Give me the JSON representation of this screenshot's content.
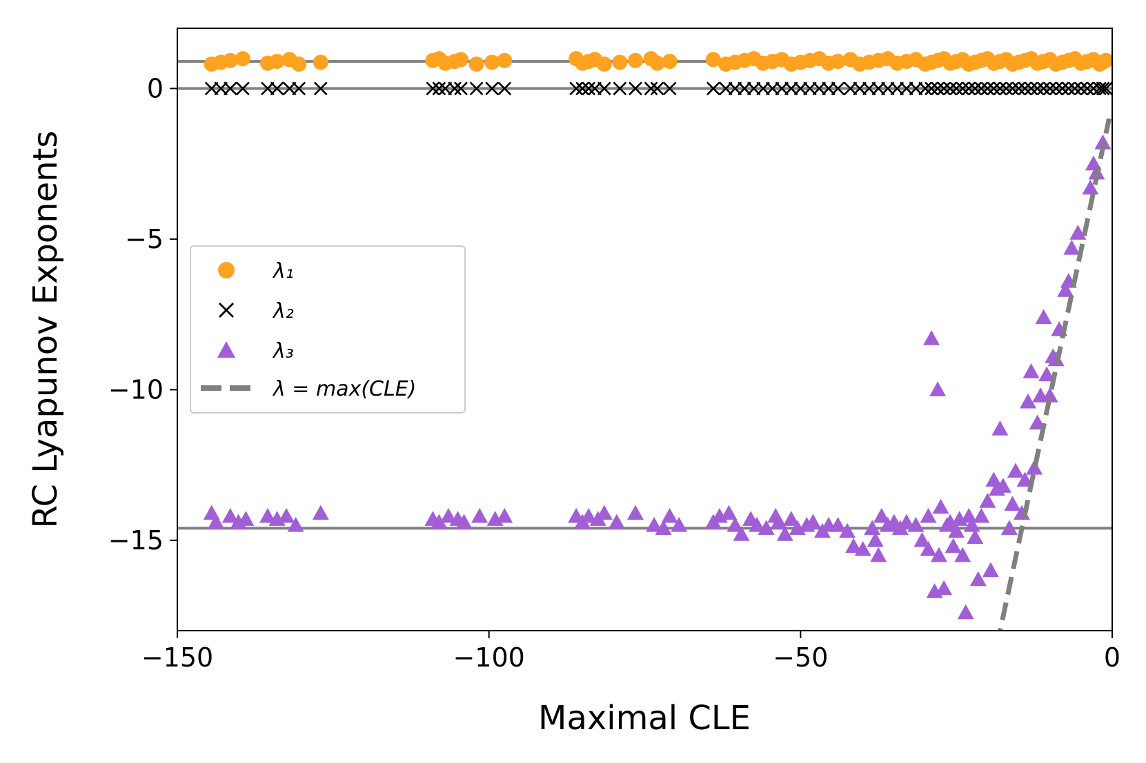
{
  "chart_data": {
    "type": "scatter",
    "title": "",
    "xlabel": "Maximal CLE",
    "ylabel": "RC Lyapunov Exponents",
    "xlim": [
      -150,
      0
    ],
    "ylim": [
      -18,
      2
    ],
    "xticks": [
      -150,
      -100,
      -50,
      0
    ],
    "xtick_labels": [
      "−150",
      "−100",
      "−50",
      "0"
    ],
    "yticks": [
      0,
      -5,
      -10,
      -15
    ],
    "ytick_labels": [
      "0",
      "−5",
      "−10",
      "−15"
    ],
    "colors": {
      "lambda1": "#ffa220",
      "lambda2": "#000000",
      "lambda3": "#a25ed6",
      "reference": "#808080"
    },
    "reference_lines": [
      {
        "name": "lambda1-mean",
        "y": 0.9
      },
      {
        "name": "lambda2-mean",
        "y": 0.0
      },
      {
        "name": "lambda3-mean",
        "y": -14.6
      }
    ],
    "dashed_line": {
      "name": "λ = max(CLE)",
      "x": [
        -18.5,
        -0.5
      ],
      "y": [
        -18.5,
        -1.0
      ]
    },
    "legend": [
      {
        "key": "lambda1",
        "marker": "circle",
        "label": "λ₁"
      },
      {
        "key": "lambda2",
        "marker": "x",
        "label": "λ₂"
      },
      {
        "key": "lambda3",
        "marker": "triangle",
        "label": "λ₃"
      },
      {
        "key": "reference",
        "marker": "dash",
        "label": "λ = max(CLE)"
      }
    ],
    "x_points": [
      -144.5,
      -143,
      -141.5,
      -139.5,
      -135.5,
      -134,
      -132,
      -130.5,
      -127,
      -109,
      -108,
      -107,
      -105.5,
      -104.5,
      -102,
      -99.5,
      -97.5,
      -86,
      -85,
      -84,
      -83,
      -81.5,
      -79,
      -76.5,
      -74,
      -73,
      -71,
      -64,
      -62,
      -60.5,
      -59,
      -57.5,
      -56,
      -54.5,
      -53,
      -51.5,
      -50,
      -48.5,
      -47,
      -45.5,
      -44,
      -42,
      -40.5,
      -39,
      -37.5,
      -36,
      -34.5,
      -33,
      -31.5,
      -30,
      -29,
      -28,
      -27,
      -26,
      -25,
      -24,
      -23,
      -22,
      -21,
      -20,
      -19,
      -18,
      -17,
      -16,
      -15,
      -14,
      -13,
      -12,
      -11,
      -10,
      -9,
      -8,
      -7,
      -6,
      -5,
      -4,
      -3,
      -2,
      -1.5,
      -1
    ],
    "series": [
      {
        "name": "lambda1",
        "y_mean": 0.9
      },
      {
        "name": "lambda2",
        "y_mean": 0.0
      },
      {
        "name": "lambda3",
        "points": [
          [
            -144.5,
            -14.1
          ],
          [
            -143.8,
            -14.4
          ],
          [
            -141.5,
            -14.2
          ],
          [
            -140.2,
            -14.4
          ],
          [
            -139,
            -14.3
          ],
          [
            -135.5,
            -14.2
          ],
          [
            -134,
            -14.3
          ],
          [
            -132.5,
            -14.2
          ],
          [
            -131,
            -14.5
          ],
          [
            -127,
            -14.1
          ],
          [
            -109,
            -14.3
          ],
          [
            -108,
            -14.4
          ],
          [
            -106.5,
            -14.2
          ],
          [
            -105,
            -14.3
          ],
          [
            -104,
            -14.4
          ],
          [
            -101.5,
            -14.2
          ],
          [
            -99,
            -14.3
          ],
          [
            -97.5,
            -14.2
          ],
          [
            -86,
            -14.2
          ],
          [
            -85,
            -14.4
          ],
          [
            -84,
            -14.2
          ],
          [
            -82.5,
            -14.3
          ],
          [
            -81.5,
            -14.1
          ],
          [
            -79.5,
            -14.4
          ],
          [
            -76.5,
            -14.1
          ],
          [
            -73.5,
            -14.5
          ],
          [
            -72,
            -14.6
          ],
          [
            -71,
            -14.2
          ],
          [
            -69.5,
            -14.5
          ],
          [
            -64,
            -14.4
          ],
          [
            -63,
            -14.2
          ],
          [
            -61.5,
            -14.1
          ],
          [
            -60.5,
            -14.5
          ],
          [
            -59.5,
            -14.8
          ],
          [
            -58,
            -14.3
          ],
          [
            -57,
            -14.5
          ],
          [
            -55.5,
            -14.6
          ],
          [
            -54,
            -14.2
          ],
          [
            -53.5,
            -14.4
          ],
          [
            -52.5,
            -14.8
          ],
          [
            -51.5,
            -14.3
          ],
          [
            -50.5,
            -14.6
          ],
          [
            -49,
            -14.5
          ],
          [
            -48,
            -14.4
          ],
          [
            -46.5,
            -14.7
          ],
          [
            -45.5,
            -14.5
          ],
          [
            -44,
            -14.5
          ],
          [
            -42.5,
            -14.7
          ],
          [
            -41.5,
            -15.2
          ],
          [
            -40,
            -15.3
          ],
          [
            -38.5,
            -14.6
          ],
          [
            -38,
            -15.0
          ],
          [
            -37.5,
            -15.5
          ],
          [
            -37,
            -14.2
          ],
          [
            -36,
            -14.5
          ],
          [
            -35,
            -14.4
          ],
          [
            -34,
            -14.6
          ],
          [
            -33,
            -14.4
          ],
          [
            -31.5,
            -14.5
          ],
          [
            -30.5,
            -15.0
          ],
          [
            -29.5,
            -14.2
          ],
          [
            -29,
            -8.3
          ],
          [
            -29.5,
            -15.3
          ],
          [
            -28.5,
            -16.7
          ],
          [
            -28,
            -10.0
          ],
          [
            -27.8,
            -15.5
          ],
          [
            -27.5,
            -13.9
          ],
          [
            -27,
            -16.6
          ],
          [
            -26.5,
            -14.5
          ],
          [
            -26,
            -14.4
          ],
          [
            -25.5,
            -15.2
          ],
          [
            -25,
            -14.7
          ],
          [
            -24.5,
            -14.3
          ],
          [
            -24,
            -15.5
          ],
          [
            -23.5,
            -17.4
          ],
          [
            -23,
            -14.2
          ],
          [
            -22.5,
            -14.5
          ],
          [
            -22,
            -14.9
          ],
          [
            -21.5,
            -16.3
          ],
          [
            -21,
            -14.2
          ],
          [
            -20,
            -13.7
          ],
          [
            -19.5,
            -16.0
          ],
          [
            -19,
            -13.0
          ],
          [
            -18.5,
            -13.3
          ],
          [
            -18,
            -11.3
          ],
          [
            -17.5,
            -13.2
          ],
          [
            -16.5,
            -14.6
          ],
          [
            -16,
            -13.8
          ],
          [
            -15.5,
            -12.7
          ],
          [
            -14.5,
            -14.1
          ],
          [
            -14,
            -13.0
          ],
          [
            -13.5,
            -10.4
          ],
          [
            -13,
            -9.4
          ],
          [
            -12.5,
            -12.6
          ],
          [
            -12,
            -11.1
          ],
          [
            -11.5,
            -10.2
          ],
          [
            -11,
            -7.6
          ],
          [
            -10.5,
            -9.5
          ],
          [
            -10,
            -10.2
          ],
          [
            -9.5,
            -8.9
          ],
          [
            -9,
            -9.0
          ],
          [
            -8.5,
            -8.0
          ],
          [
            -7.5,
            -6.7
          ],
          [
            -7,
            -6.4
          ],
          [
            -6.5,
            -5.3
          ],
          [
            -5.5,
            -4.8
          ],
          [
            -3.5,
            -3.3
          ],
          [
            -3,
            -2.5
          ],
          [
            -2.5,
            -2.8
          ],
          [
            -1.5,
            -1.8
          ]
        ]
      }
    ]
  }
}
